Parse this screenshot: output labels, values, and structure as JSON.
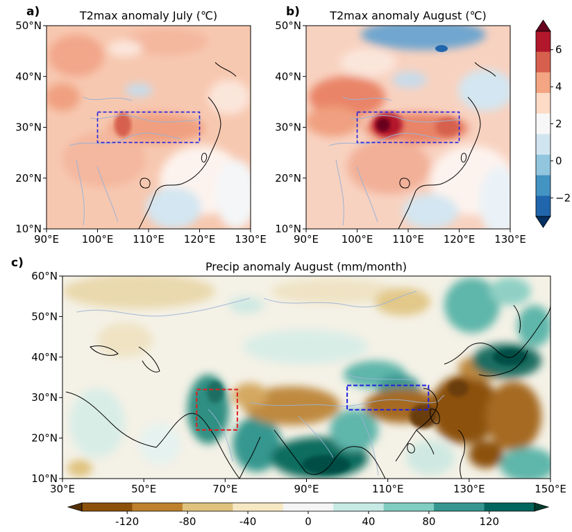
{
  "chart_data": [
    {
      "panel": "a)",
      "type": "heatmap",
      "title": "T2max anomaly July (℃)",
      "lon_ticks": [
        "90°E",
        "100°E",
        "110°E",
        "120°E",
        "130°E"
      ],
      "lat_ticks": [
        "10°N",
        "20°N",
        "30°N",
        "40°N",
        "50°N"
      ],
      "lon_range": [
        90,
        130
      ],
      "lat_range": [
        10,
        50
      ],
      "box": {
        "lon": [
          100,
          120
        ],
        "lat": [
          27,
          33
        ],
        "color": "#2020e0"
      },
      "hotspot": {
        "lon": 105,
        "lat": 29.5,
        "value": 4
      }
    },
    {
      "panel": "b)",
      "type": "heatmap",
      "title": "T2max anomaly August (℃)",
      "lon_ticks": [
        "90°E",
        "100°E",
        "110°E",
        "120°E",
        "130°E"
      ],
      "lat_ticks": [
        "10°N",
        "20°N",
        "30°N",
        "40°N",
        "50°N"
      ],
      "lon_range": [
        90,
        130
      ],
      "lat_range": [
        10,
        50
      ],
      "box": {
        "lon": [
          100,
          120
        ],
        "lat": [
          27,
          33
        ],
        "color": "#2020e0"
      },
      "hotspot": {
        "lon": 105.5,
        "lat": 29.5,
        "value": 7
      }
    },
    {
      "panel": "c)",
      "type": "heatmap",
      "title": "Precip anomaly August (mm/month)",
      "lon_ticks": [
        "30°E",
        "50°E",
        "70°E",
        "90°E",
        "110°E",
        "130°E",
        "150°E"
      ],
      "lat_ticks": [
        "10°N",
        "20°N",
        "30°N",
        "40°N",
        "50°N",
        "60°N"
      ],
      "lon_range": [
        30,
        150
      ],
      "lat_range": [
        10,
        60
      ],
      "boxes": [
        {
          "lon": [
            63,
            73
          ],
          "lat": [
            22,
            32
          ],
          "color": "#e02020"
        },
        {
          "lon": [
            100,
            120
          ],
          "lat": [
            27,
            33
          ],
          "color": "#2020e0"
        }
      ]
    }
  ],
  "colorbars": {
    "temperature": {
      "ticks": [
        "6",
        "4",
        "2",
        "0",
        "−2"
      ],
      "tick_values": [
        6,
        4,
        2,
        0,
        -2
      ],
      "range": [
        -3,
        7
      ],
      "colors": [
        "#67001f",
        "#b2182b",
        "#d6604d",
        "#f4a582",
        "#fddbc7",
        "#f7f7f7",
        "#d1e5f0",
        "#92c5de",
        "#4393c3",
        "#2166ac",
        "#053061"
      ]
    },
    "precip": {
      "ticks": [
        "-120",
        "-80",
        "-40",
        "0",
        "40",
        "80",
        "120"
      ],
      "tick_values": [
        -120,
        -80,
        -40,
        0,
        40,
        80,
        120
      ],
      "range": [
        -150,
        150
      ],
      "colors": [
        "#543005",
        "#8c510a",
        "#bf812d",
        "#dfc27d",
        "#f6e8c3",
        "#f5f5f5",
        "#c7eae5",
        "#80cdc1",
        "#35978f",
        "#01665e",
        "#003c30"
      ]
    }
  }
}
